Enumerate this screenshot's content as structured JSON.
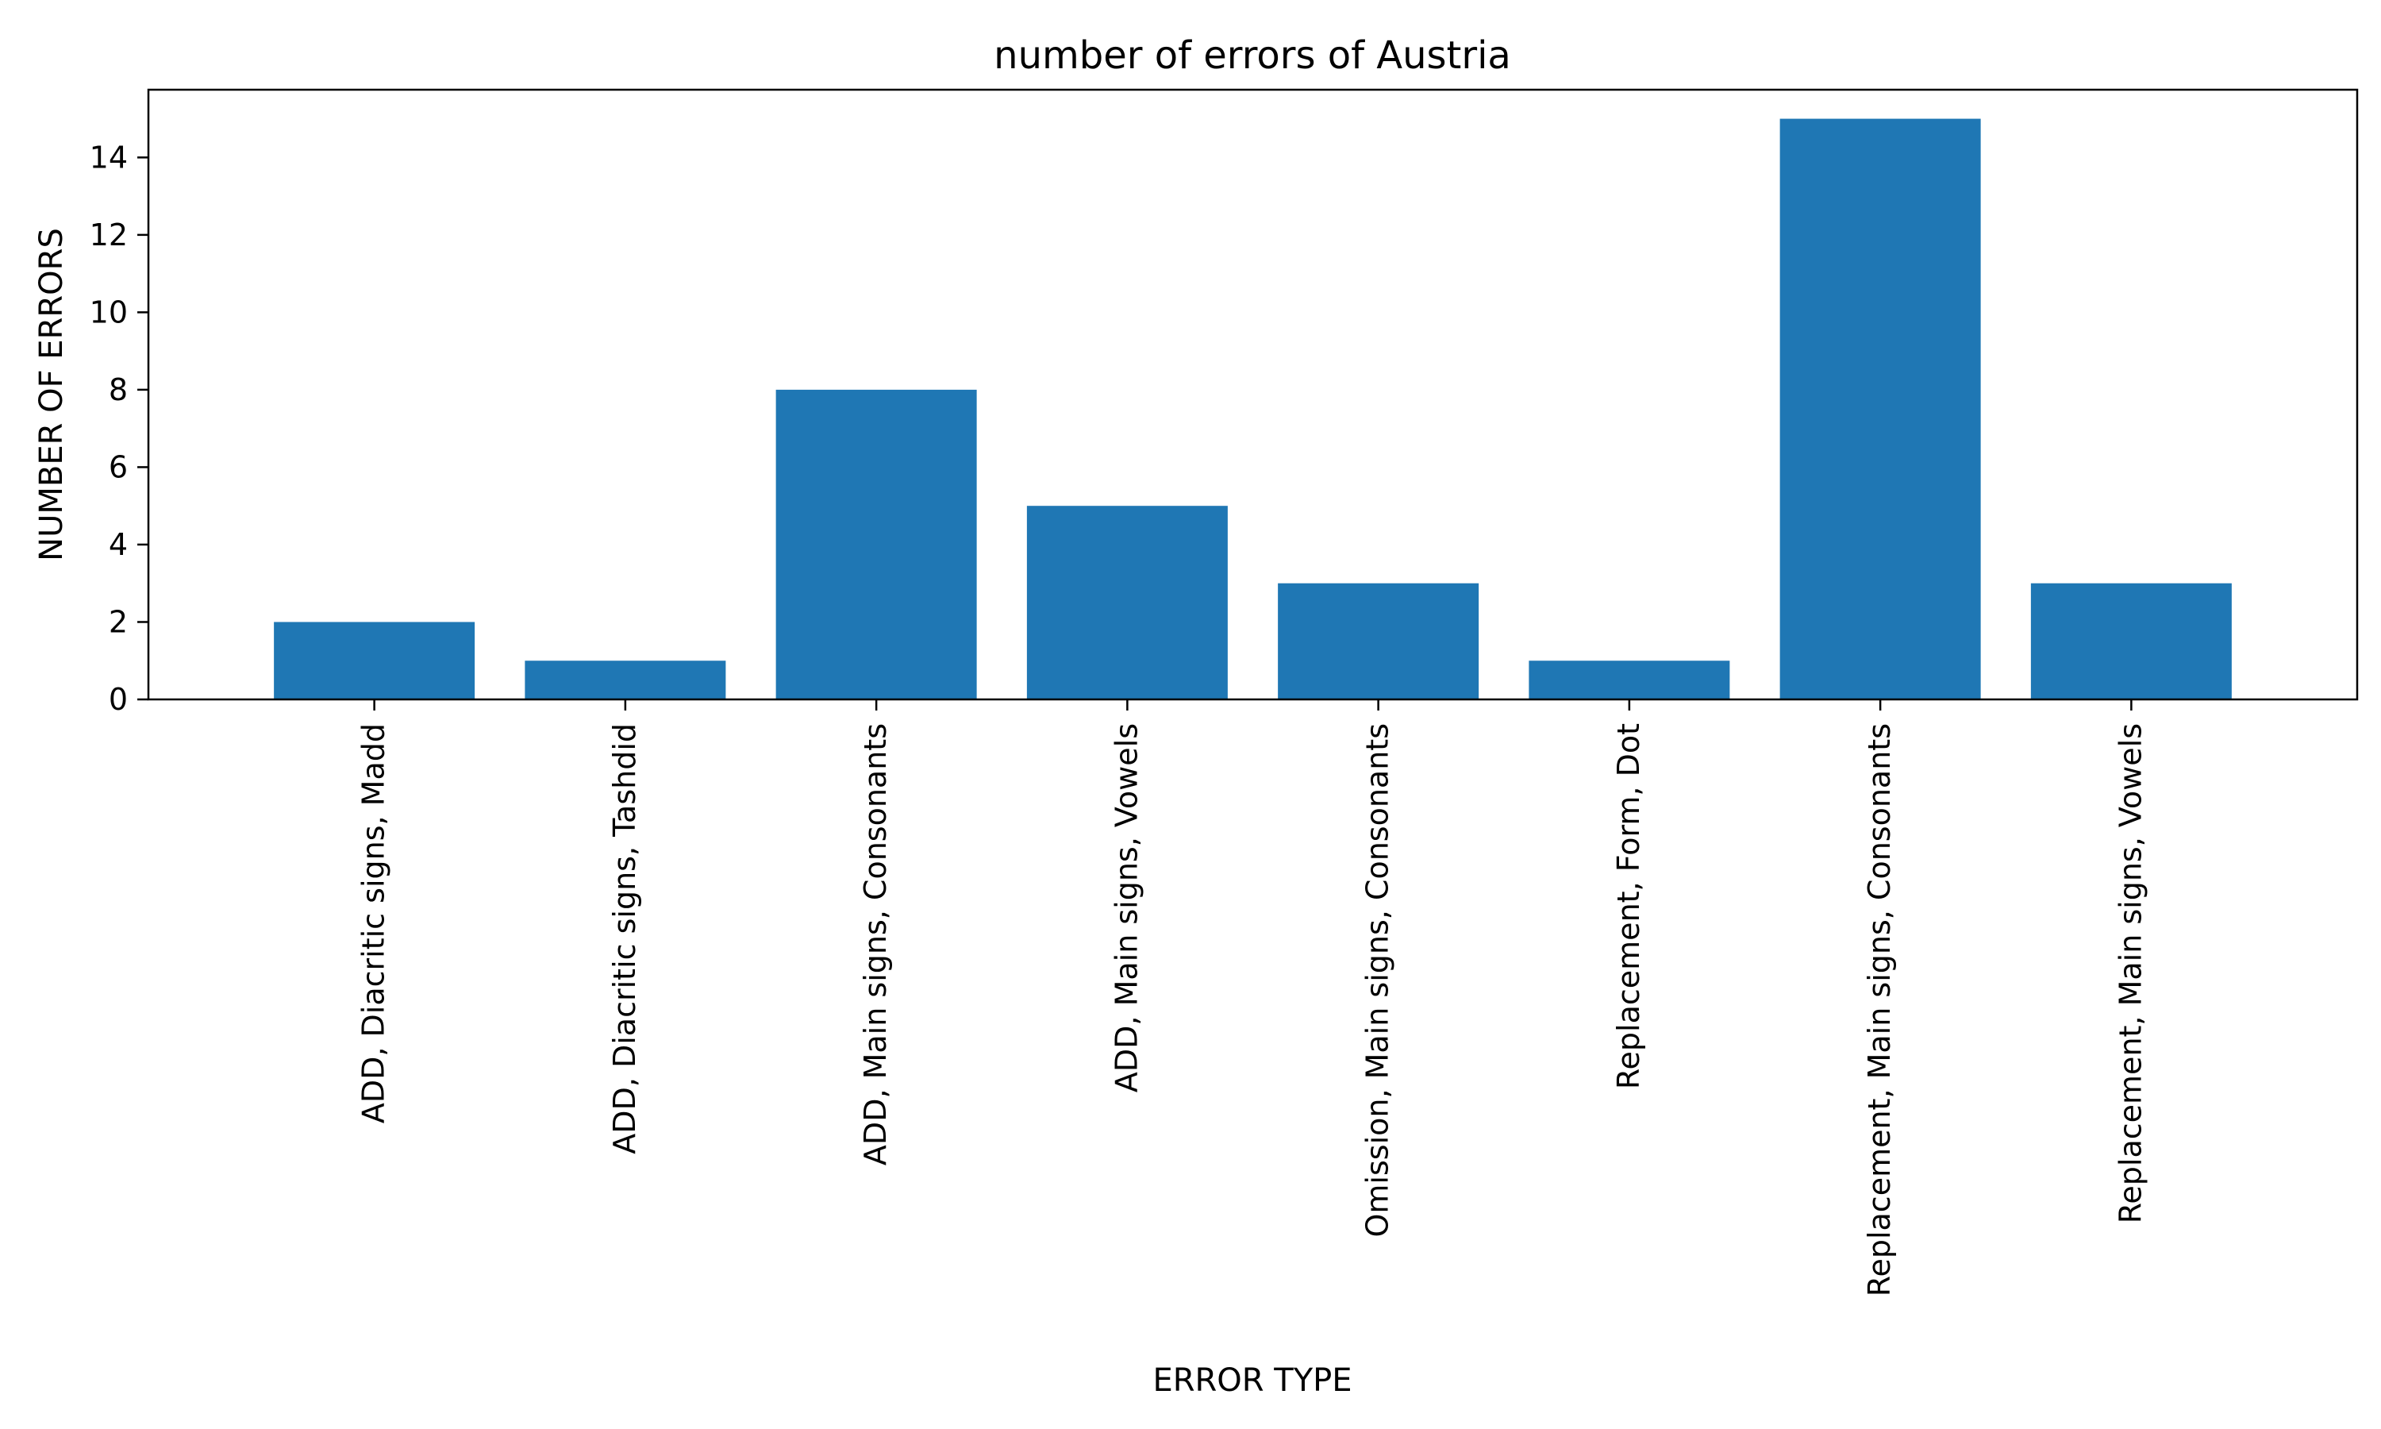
{
  "chart_data": {
    "type": "bar",
    "title": "number of errors of Austria",
    "xlabel": "ERROR TYPE",
    "ylabel": "NUMBER OF ERRORS",
    "categories": [
      "ADD, Diacritic signs, Madd",
      "ADD, Diacritic signs, Tashdid",
      "ADD, Main signs, Consonants",
      "ADD, Main signs, Vowels",
      "Omission, Main signs, Consonants",
      "Replacement, Form, Dot",
      "Replacement, Main signs, Consonants",
      "Replacement, Main signs, Vowels"
    ],
    "values": [
      2,
      1,
      8,
      5,
      3,
      1,
      15,
      3
    ],
    "ylim": [
      0,
      15.75
    ],
    "yticks": [
      "0",
      "2",
      "4",
      "6",
      "8",
      "10",
      "12",
      "14"
    ],
    "grid": false,
    "colors": {
      "bar": "#1f77b4",
      "axis": "#000000",
      "background": "#ffffff"
    }
  }
}
